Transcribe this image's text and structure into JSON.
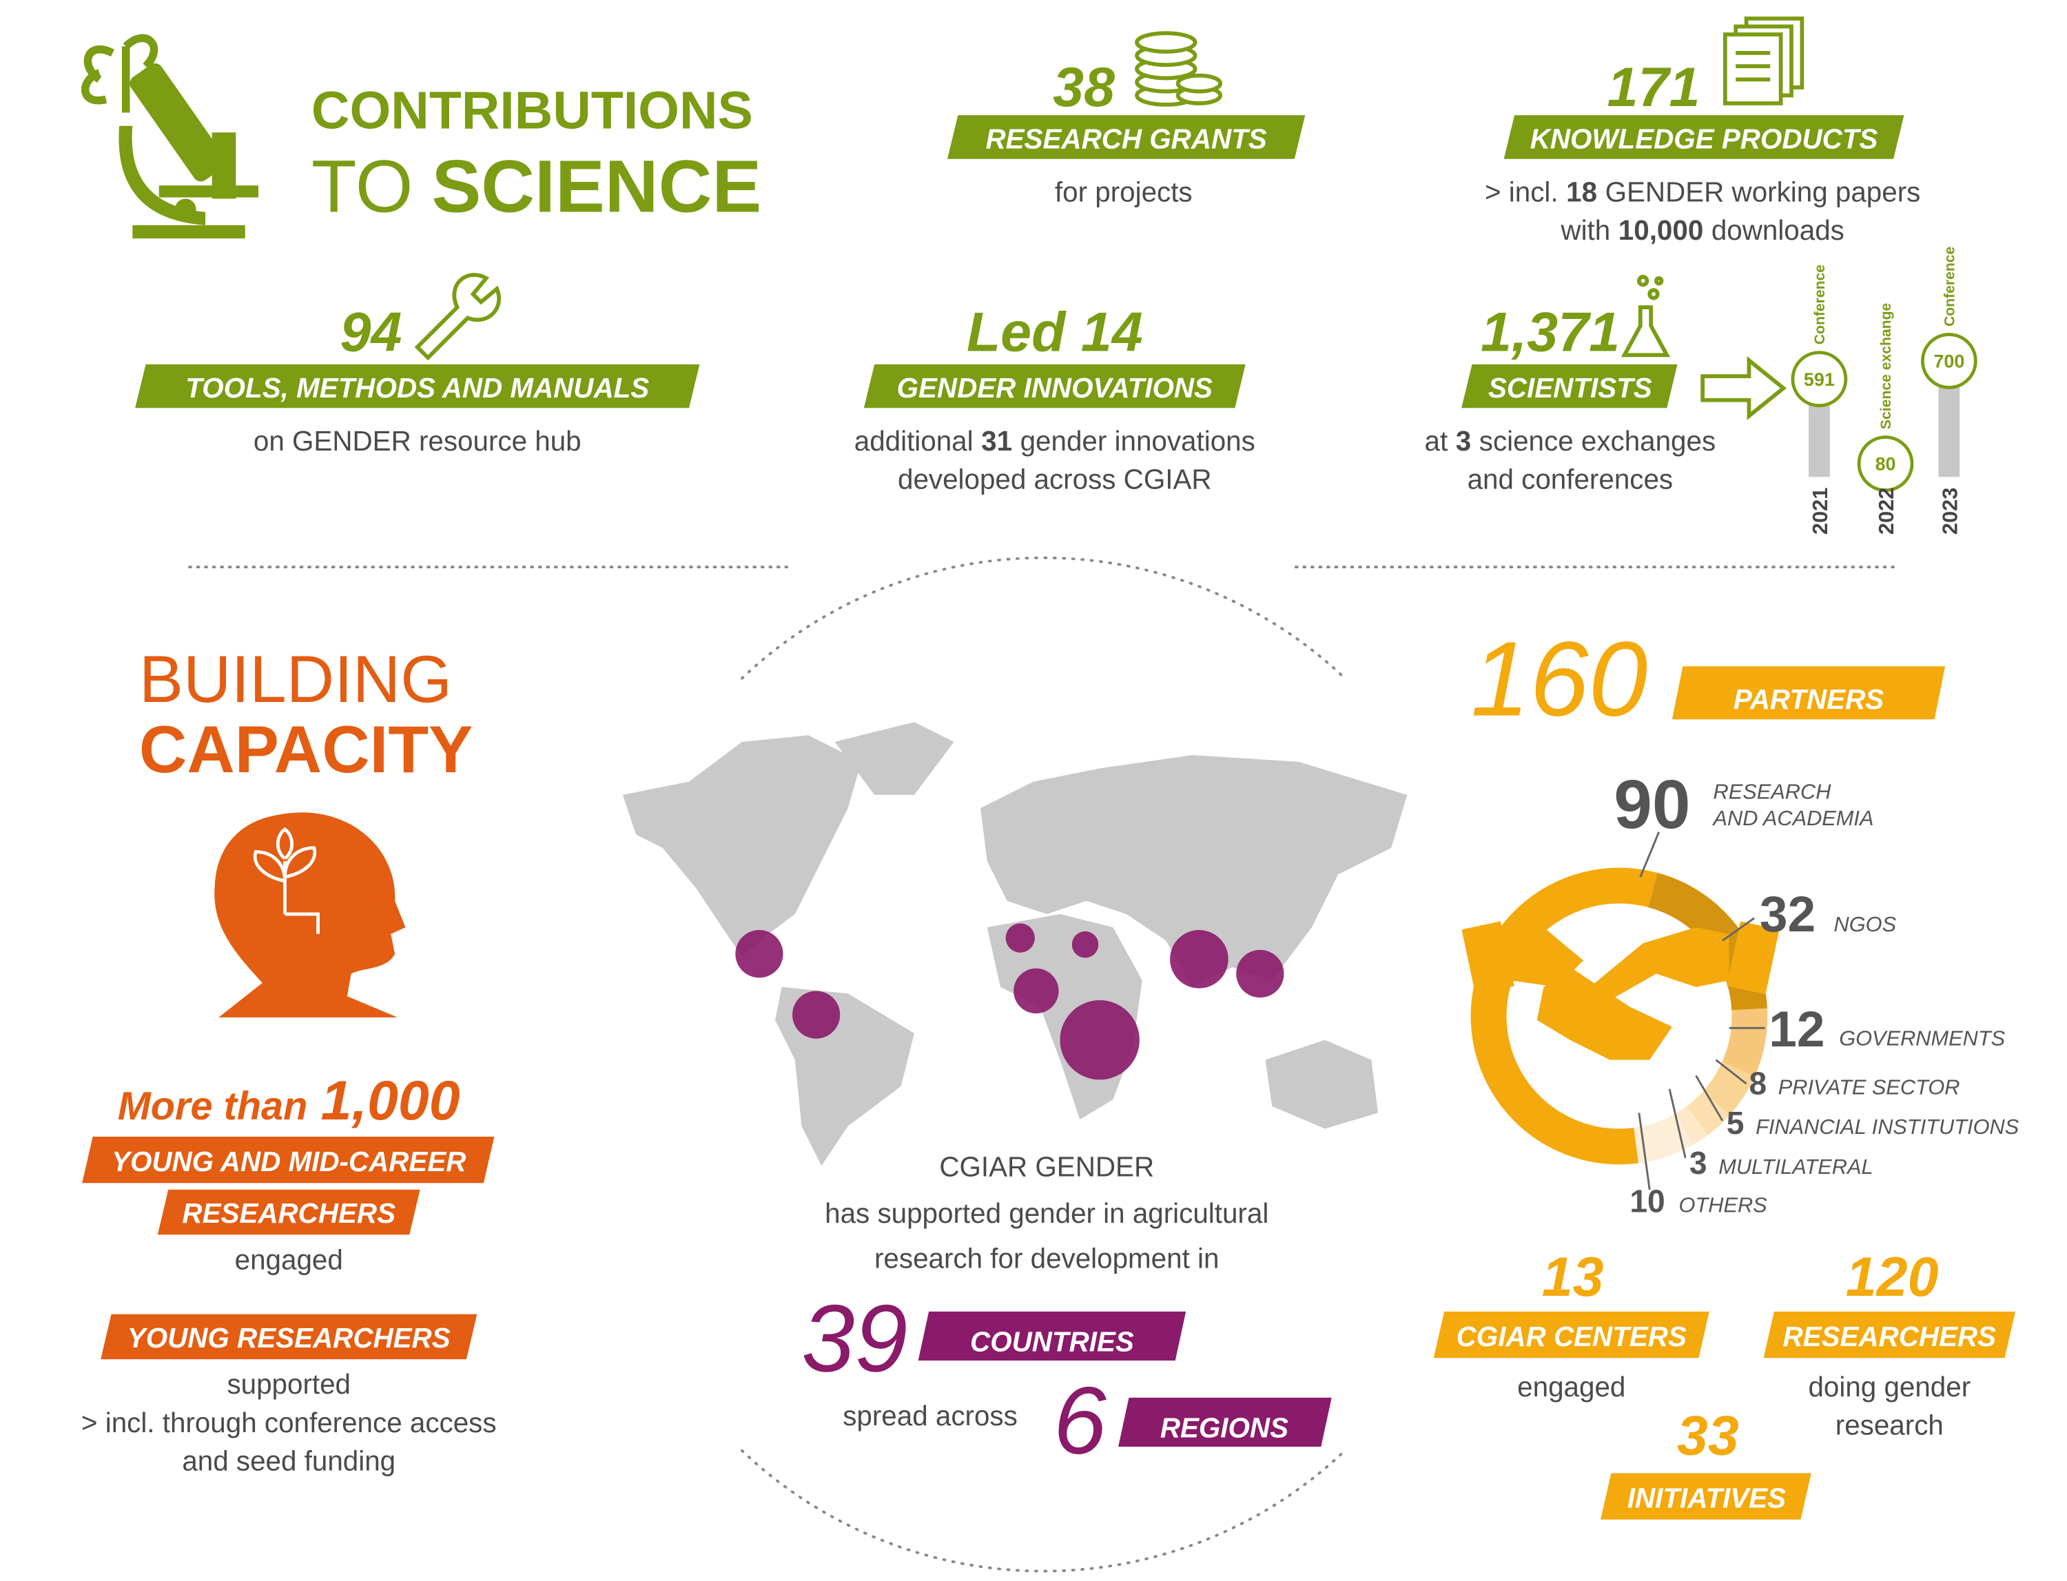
{
  "contributions": {
    "title_line1": "CONTRIBUTIONS",
    "title_line2_a": "TO",
    "title_line2_b": "SCIENCE"
  },
  "grants": {
    "number": "38",
    "label": "RESEARCH GRANTS",
    "note": "for projects"
  },
  "knowledge": {
    "number": "171",
    "label": "KNOWLEDGE PRODUCTS",
    "note1": [
      "> incl.",
      "18",
      "GENDER working papers"
    ],
    "note2": [
      "with",
      "10,000",
      "downloads"
    ]
  },
  "tools": {
    "number": "94",
    "label": "TOOLS, METHODS AND MANUALS",
    "note": "on GENDER resource hub"
  },
  "innovations": {
    "number": "Led 14",
    "label": "GENDER INNOVATIONS",
    "note1": [
      "additional",
      "31",
      "gender innovations"
    ],
    "note2": "developed across CGIAR"
  },
  "scientists": {
    "number": "1,371",
    "label": "SCIENTISTS",
    "note1": [
      "at",
      "3",
      "science exchanges"
    ],
    "note2": "and conferences",
    "events": [
      {
        "year": "2021",
        "type": "Conference",
        "count": 591
      },
      {
        "year": "2022",
        "type": "Science exchange",
        "count": 80
      },
      {
        "year": "2023",
        "type": "Conference",
        "count": 700
      }
    ]
  },
  "capacity": {
    "title_line1": "BUILDING",
    "title_line2": "CAPACITY",
    "headline": [
      "More than",
      "1,000"
    ],
    "banner1": "YOUNG AND MID-CAREER",
    "banner2": "RESEARCHERS",
    "note": "engaged",
    "banner3": "YOUNG RESEARCHERS",
    "note2": [
      "supported",
      "> incl. through conference access",
      "and seed funding"
    ]
  },
  "reach": {
    "lines": [
      "CGIAR GENDER",
      "has supported gender in agricultural",
      "research for development in"
    ],
    "countries_number": "39",
    "countries_label": "COUNTRIES",
    "regions_prefix": "spread across",
    "regions_number": "6",
    "regions_label": "REGIONS"
  },
  "partners": {
    "number": "160",
    "label": "PARTNERS",
    "segments": [
      {
        "value": 90,
        "label_lines": [
          "RESEARCH",
          "AND ACADEMIA"
        ],
        "color": "#f4a90c"
      },
      {
        "value": 32,
        "label_lines": [
          "NGOS"
        ],
        "color": "#d4940f"
      },
      {
        "value": 12,
        "label_lines": [
          "GOVERNMENTS"
        ],
        "color": "#f6c77a"
      },
      {
        "value": 8,
        "label_lines": [
          "PRIVATE SECTOR"
        ],
        "color": "#f9d595"
      },
      {
        "value": 5,
        "label_lines": [
          "FINANCIAL INSTITUTIONS"
        ],
        "color": "#fbdfae"
      },
      {
        "value": 3,
        "label_lines": [
          "MULTILATERAL"
        ],
        "color": "#fde8c8"
      },
      {
        "value": 10,
        "label_lines": [
          "OTHERS"
        ],
        "color": "#fdeed7"
      }
    ]
  },
  "centers": {
    "number": "13",
    "label": "CGIAR CENTERS",
    "note": "engaged"
  },
  "researchers": {
    "number": "120",
    "label": "RESEARCHERS",
    "note": [
      "doing gender",
      "research"
    ]
  },
  "initiatives": {
    "number": "33",
    "label": "INITIATIVES"
  }
}
